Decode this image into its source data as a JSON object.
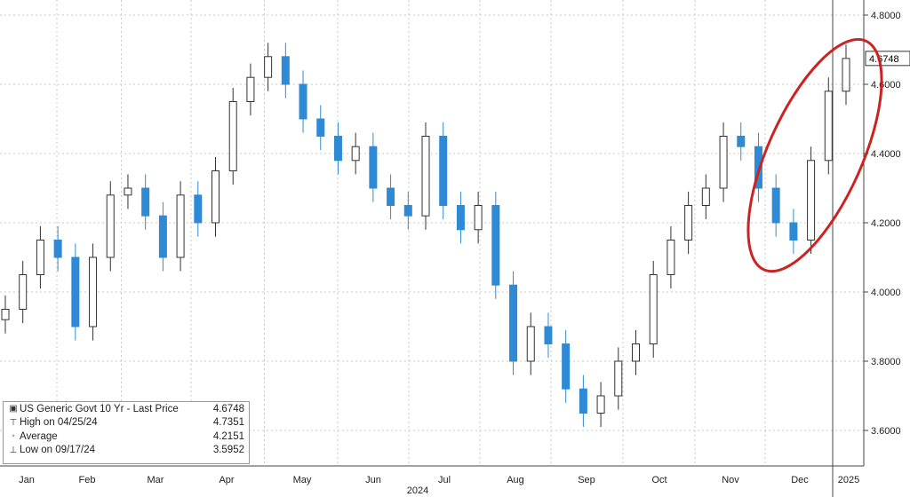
{
  "chart_data": {
    "type": "candlestick",
    "title": "",
    "ylim": [
      3.5,
      4.85
    ],
    "y_ticks": [
      "3.6000",
      "3.8000",
      "4.0000",
      "4.2000",
      "4.4000",
      "4.6000",
      "4.8000"
    ],
    "x_ticks": [
      "Jan",
      "Feb",
      "Mar",
      "Apr",
      "May",
      "Jun",
      "Jul",
      "Aug",
      "Sep",
      "Oct",
      "Nov",
      "Dec",
      "2025"
    ],
    "year_label": "2024",
    "last_price_label": "4.6748",
    "series": [
      {
        "name": "US Generic Govt 10 Yr - Last Price",
        "x": [
          "Jan",
          "Jan",
          "Jan",
          "Jan",
          "Feb",
          "Feb",
          "Feb",
          "Feb",
          "Mar",
          "Mar",
          "Mar",
          "Mar",
          "Apr",
          "Apr",
          "Apr",
          "Apr",
          "May",
          "May",
          "May",
          "May",
          "Jun",
          "Jun",
          "Jun",
          "Jun",
          "Jul",
          "Jul",
          "Jul",
          "Jul",
          "Aug",
          "Aug",
          "Aug",
          "Aug",
          "Sep",
          "Sep",
          "Sep",
          "Sep",
          "Oct",
          "Oct",
          "Oct",
          "Oct",
          "Nov",
          "Nov",
          "Nov",
          "Nov",
          "Dec",
          "Dec",
          "Dec",
          "Dec",
          "2025"
        ],
        "values": [
          3.95,
          4.05,
          4.15,
          4.1,
          3.9,
          4.1,
          4.28,
          4.3,
          4.22,
          4.1,
          4.28,
          4.2,
          4.35,
          4.55,
          4.62,
          4.68,
          4.6,
          4.5,
          4.45,
          4.38,
          4.42,
          4.3,
          4.25,
          4.22,
          4.45,
          4.25,
          4.18,
          4.25,
          4.02,
          3.8,
          3.9,
          3.85,
          3.72,
          3.65,
          3.7,
          3.8,
          3.85,
          4.05,
          4.15,
          4.25,
          4.3,
          4.45,
          4.42,
          4.3,
          4.2,
          4.15,
          4.38,
          4.58,
          4.6748
        ]
      }
    ],
    "legend": {
      "rows": [
        {
          "icon": "square-icon",
          "label": "US Generic Govt 10 Yr - Last Price",
          "value": "4.6748"
        },
        {
          "icon": "high-marker-icon",
          "label": "High on 04/25/24",
          "value": "4.7351"
        },
        {
          "icon": "average-marker-icon",
          "label": "Average",
          "value": "4.2151"
        },
        {
          "icon": "low-marker-icon",
          "label": "Low on 09/17/24",
          "value": "3.5952"
        }
      ],
      "placement": "bottom-left"
    },
    "colors": {
      "up": "#333333",
      "down": "#2f8ad6",
      "grid": "#c8c8c8",
      "highlight": "#cc2222",
      "last_price_badge": "#ffffff"
    },
    "grid": true
  }
}
